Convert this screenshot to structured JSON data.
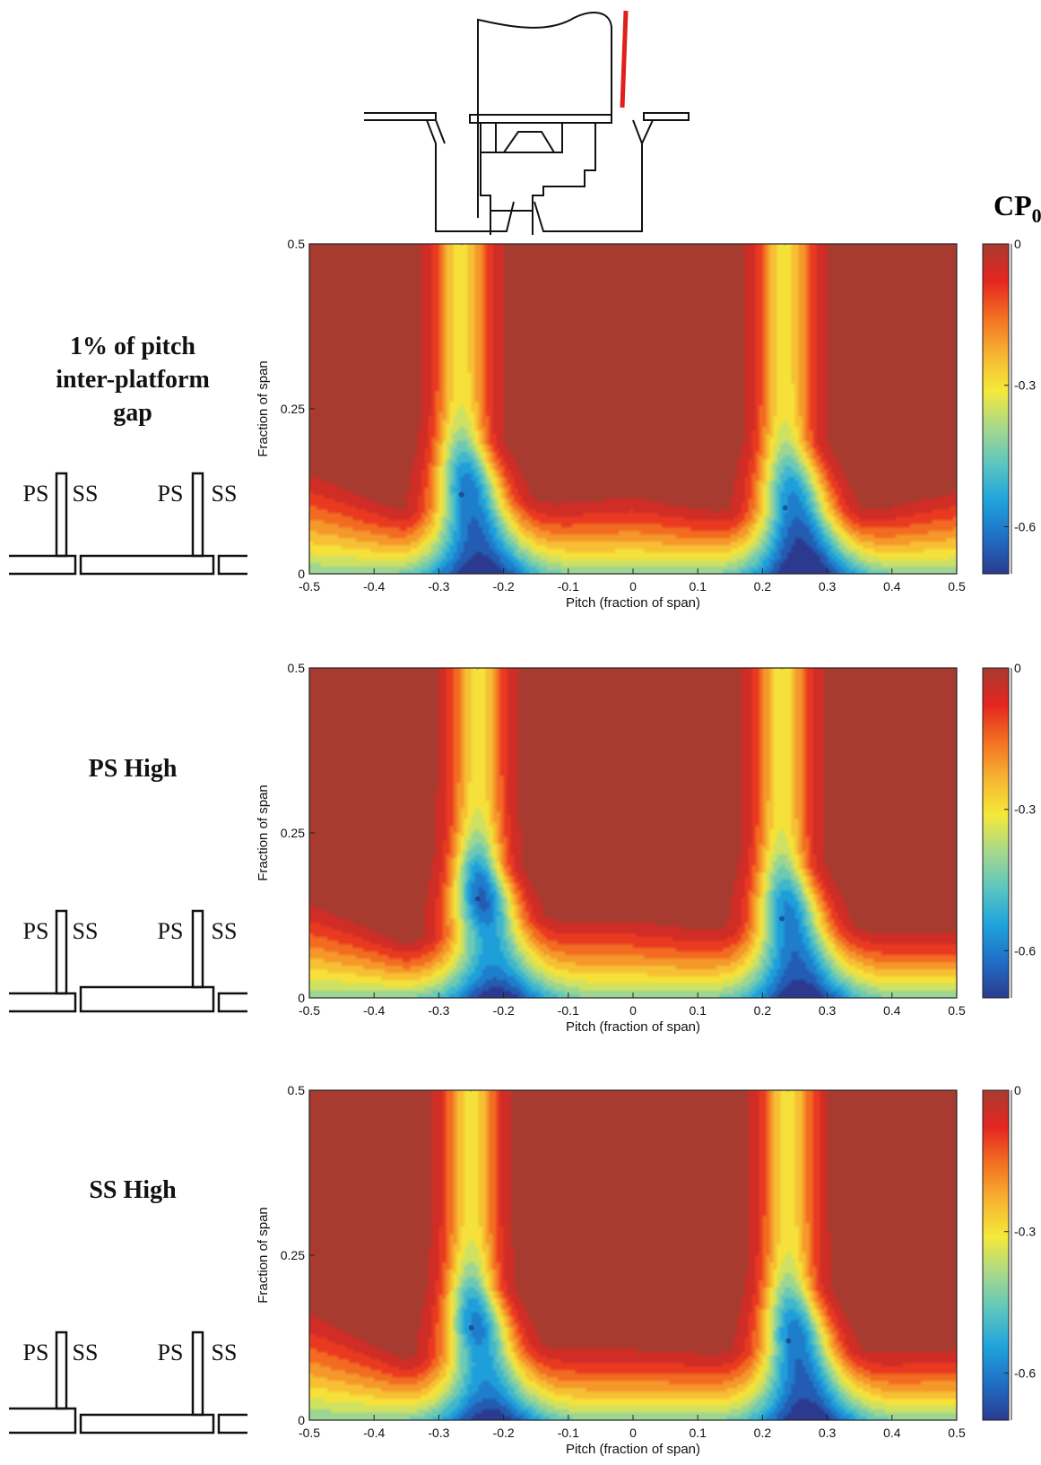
{
  "colorbar_title": "CP",
  "colorbar_title_sub": "0",
  "colorbar_ticks": [
    "0",
    "-0.3",
    "-0.6"
  ],
  "panels": [
    {
      "label_lines": [
        "1% of pitch",
        "inter-platform",
        "gap"
      ],
      "xlabel": "Pitch (fraction of span)",
      "ylabel": "Fraction of span",
      "sketch": {
        "labels": [
          "PS",
          "SS",
          "PS",
          "SS"
        ],
        "configuration": "1% gap"
      }
    },
    {
      "label_lines": [
        "PS High"
      ],
      "xlabel": "Pitch (fraction of span)",
      "ylabel": "Fraction of span",
      "sketch": {
        "labels": [
          "PS",
          "SS",
          "PS",
          "SS"
        ],
        "configuration": "PS high"
      }
    },
    {
      "label_lines": [
        "SS High"
      ],
      "xlabel": "Pitch (fraction of span)",
      "ylabel": "Fraction of span",
      "sketch": {
        "labels": [
          "PS",
          "SS",
          "PS",
          "SS"
        ],
        "configuration": "SS high"
      }
    }
  ],
  "colors": {
    "max": "#a83b2f",
    "scale": [
      "#2b3a8f",
      "#1f6fc6",
      "#1fa3dc",
      "#5cc6c0",
      "#a8d88a",
      "#f5e93a",
      "#f7b431",
      "#f37021",
      "#e52521",
      "#a83b2f"
    ],
    "probe_line": "#e0201b"
  },
  "chart_data": [
    {
      "type": "heatmap",
      "title": "",
      "xlabel": "Pitch (fraction of span)",
      "ylabel": "Fraction of span",
      "xlim": [
        -0.5,
        0.5
      ],
      "ylim": [
        0,
        0.5
      ],
      "xticks": [
        "-0.5",
        "-0.4",
        "-0.3",
        "-0.2",
        "-0.1",
        "0",
        "0.1",
        "0.2",
        "0.3",
        "0.4",
        "0.5"
      ],
      "yticks": [
        "0",
        "0.25",
        "0.5"
      ],
      "colorbar": {
        "label": "CP0",
        "range": [
          -0.7,
          0
        ],
        "ticks": [
          0,
          -0.3,
          -0.6
        ]
      },
      "wakes": [
        {
          "pitch": -0.265,
          "min_value": -0.62,
          "min_span": 0.12
        },
        {
          "pitch": 0.235,
          "min_value": -0.6,
          "min_span": 0.1
        }
      ],
      "endwall_loss_height": {
        "pitch": [
          -0.5,
          -0.35,
          -0.1,
          0.0,
          0.15,
          0.35,
          0.5
        ],
        "span": [
          0.17,
          0.1,
          0.12,
          0.13,
          0.1,
          0.1,
          0.14
        ]
      }
    },
    {
      "type": "heatmap",
      "title": "",
      "xlabel": "Pitch (fraction of span)",
      "ylabel": "Fraction of span",
      "xlim": [
        -0.5,
        0.5
      ],
      "ylim": [
        0,
        0.5
      ],
      "xticks": [
        "-0.5",
        "-0.4",
        "-0.3",
        "-0.2",
        "-0.1",
        "0",
        "0.1",
        "0.2",
        "0.3",
        "0.4",
        "0.5"
      ],
      "yticks": [
        "0",
        "0.25",
        "0.5"
      ],
      "colorbar": {
        "label": "CP0",
        "range": [
          -0.7,
          0
        ],
        "ticks": [
          0,
          -0.3,
          -0.6
        ]
      },
      "wakes": [
        {
          "pitch": -0.24,
          "min_value": -0.64,
          "min_span": 0.15
        },
        {
          "pitch": 0.23,
          "min_value": -0.6,
          "min_span": 0.12
        }
      ],
      "endwall_loss_height": {
        "pitch": [
          -0.5,
          -0.35,
          -0.1,
          0.0,
          0.15,
          0.35,
          0.5
        ],
        "span": [
          0.16,
          0.09,
          0.13,
          0.13,
          0.11,
          0.11,
          0.11
        ]
      }
    },
    {
      "type": "heatmap",
      "title": "",
      "xlabel": "Pitch (fraction of span)",
      "ylabel": "Fraction of span",
      "xlim": [
        -0.5,
        0.5
      ],
      "ylim": [
        0,
        0.5
      ],
      "xticks": [
        "-0.5",
        "-0.4",
        "-0.3",
        "-0.2",
        "-0.1",
        "0",
        "0.1",
        "0.2",
        "0.3",
        "0.4",
        "0.5"
      ],
      "yticks": [
        "0",
        "0.25",
        "0.5"
      ],
      "colorbar": {
        "label": "CP0",
        "range": [
          -0.7,
          0
        ],
        "ticks": [
          0,
          -0.3,
          -0.6
        ]
      },
      "wakes": [
        {
          "pitch": -0.25,
          "min_value": -0.6,
          "min_span": 0.14
        },
        {
          "pitch": 0.24,
          "min_value": -0.62,
          "min_span": 0.12
        }
      ],
      "endwall_loss_height": {
        "pitch": [
          -0.5,
          -0.35,
          -0.1,
          0.0,
          0.15,
          0.35,
          0.5
        ],
        "span": [
          0.18,
          0.1,
          0.12,
          0.12,
          0.11,
          0.11,
          0.12
        ]
      }
    }
  ]
}
